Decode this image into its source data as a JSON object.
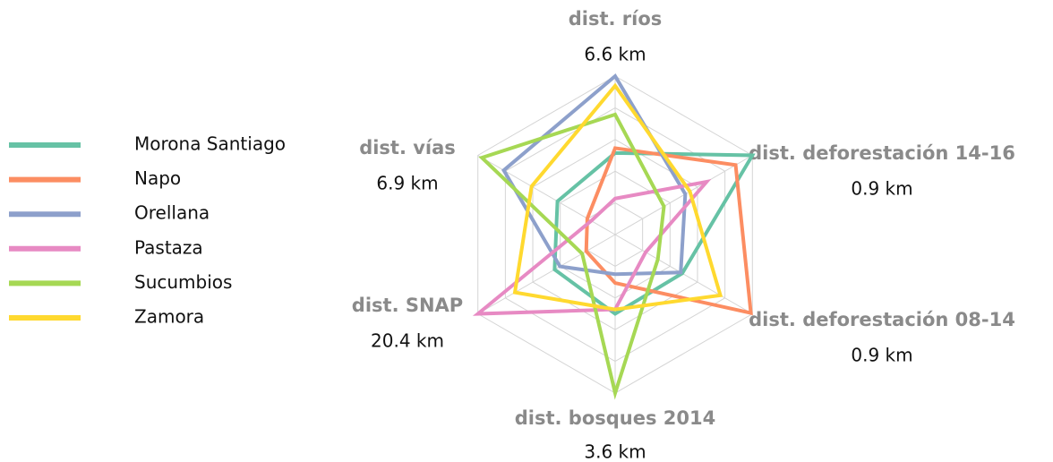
{
  "chart_data": {
    "type": "radar",
    "axes": [
      {
        "name": "dist. ríos",
        "max": {
          "value": 6.6,
          "label": "6.6 km"
        }
      },
      {
        "name": "dist. deforestación 14-16",
        "max": {
          "value": 0.9,
          "label": "0.9 km"
        }
      },
      {
        "name": "dist. deforestación 08-14",
        "max": {
          "value": 0.9,
          "label": "0.9 km"
        }
      },
      {
        "name": "dist. bosques 2014",
        "max": {
          "value": 3.6,
          "label": "3.6 km"
        }
      },
      {
        "name": "dist. SNAP",
        "max": {
          "value": 20.4,
          "label": "20.4 km"
        }
      },
      {
        "name": "dist. vías",
        "max": {
          "value": 6.9,
          "label": "6.9 km"
        }
      }
    ],
    "series": [
      {
        "name": "Morona Santiago",
        "color": "#66c2a5",
        "values": [
          3.4,
          0.9,
          0.44,
          1.8,
          9.0,
          2.9
        ]
      },
      {
        "name": "Napo",
        "color": "#fc8d62",
        "values": [
          3.6,
          0.79,
          0.89,
          1.1,
          4.3,
          1.4
        ]
      },
      {
        "name": "Orellana",
        "color": "#8da0cb",
        "values": [
          6.6,
          0.46,
          0.43,
          0.9,
          8.2,
          5.6
        ]
      },
      {
        "name": "Pastaza",
        "color": "#e78ac3",
        "values": [
          1.5,
          0.6,
          0.2,
          1.7,
          20.4,
          1.2
        ]
      },
      {
        "name": "Sucumbios",
        "color": "#a6d854",
        "values": [
          5.0,
          0.32,
          0.28,
          3.6,
          4.9,
          6.7
        ]
      },
      {
        "name": "Zamora",
        "color": "#ffd92f",
        "values": [
          6.2,
          0.49,
          0.69,
          1.7,
          14.9,
          4.2
        ]
      }
    ]
  }
}
